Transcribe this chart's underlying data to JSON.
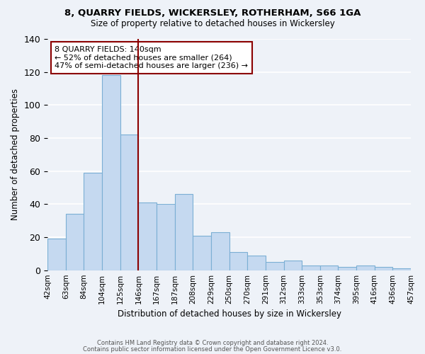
{
  "title": "8, QUARRY FIELDS, WICKERSLEY, ROTHERHAM, S66 1GA",
  "subtitle": "Size of property relative to detached houses in Wickersley",
  "xlabel": "Distribution of detached houses by size in Wickersley",
  "ylabel": "Number of detached properties",
  "tick_labels": [
    "42sqm",
    "63sqm",
    "84sqm",
    "104sqm",
    "125sqm",
    "146sqm",
    "167sqm",
    "187sqm",
    "208sqm",
    "229sqm",
    "250sqm",
    "270sqm",
    "291sqm",
    "312sqm",
    "333sqm",
    "353sqm",
    "374sqm",
    "395sqm",
    "416sqm",
    "436sqm",
    "457sqm"
  ],
  "bar_values": [
    19,
    34,
    59,
    118,
    82,
    41,
    40,
    46,
    21,
    23,
    11,
    9,
    5,
    6,
    3,
    3,
    2,
    3,
    2,
    1
  ],
  "bar_color": "#c5d9f0",
  "bar_edge_color": "#7bafd4",
  "vline_pos": 4.5,
  "vline_color": "#8b0000",
  "annotation_text": "8 QUARRY FIELDS: 140sqm\n← 52% of detached houses are smaller (264)\n47% of semi-detached houses are larger (236) →",
  "annotation_box_color": "white",
  "annotation_box_edge_color": "#8b0000",
  "ylim": [
    0,
    140
  ],
  "yticks": [
    0,
    20,
    40,
    60,
    80,
    100,
    120,
    140
  ],
  "footer_line1": "Contains HM Land Registry data © Crown copyright and database right 2024.",
  "footer_line2": "Contains public sector information licensed under the Open Government Licence v3.0.",
  "background_color": "#eef2f8",
  "grid_color": "white"
}
